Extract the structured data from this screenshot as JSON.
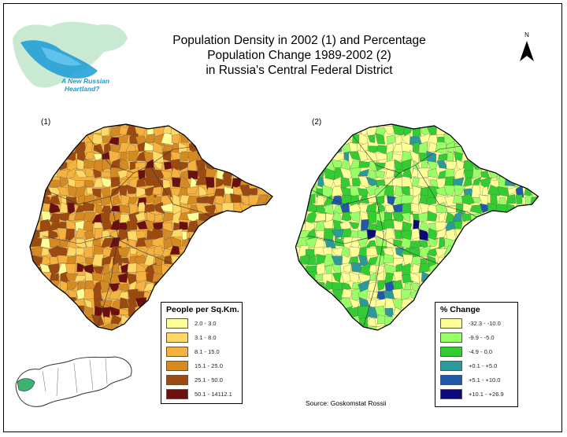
{
  "title": {
    "line1": "Population Density in 2002 (1) and Percentage",
    "line2": "Population Change 1989-2002 (2)",
    "line3": "in Russia's Central Federal District"
  },
  "logo": {
    "line1": "A New Russian",
    "line2": "Heartland?",
    "accent_color": "#1a9bd7"
  },
  "north_arrow": {
    "label": "N"
  },
  "map1": {
    "label": "(1)",
    "legend_title": "People per Sq.Km.",
    "classes": [
      {
        "label": "2.0 - 3.0",
        "color": "#ffff99"
      },
      {
        "label": "3.1 - 8.0",
        "color": "#ffd966"
      },
      {
        "label": "8.1 - 15.0",
        "color": "#f5b23f"
      },
      {
        "label": "15.1 - 25.0",
        "color": "#d68a22"
      },
      {
        "label": "25.1 - 50.0",
        "color": "#9c4a0f"
      },
      {
        "label": "50.1 - 14112.1",
        "color": "#6b0f0f"
      }
    ]
  },
  "map2": {
    "label": "(2)",
    "legend_title": "% Change",
    "classes": [
      {
        "label": "-32.3 - -10.0",
        "color": "#ffff99"
      },
      {
        "label": "-9.9 - -5.0",
        "color": "#99ff66"
      },
      {
        "label": "-4.9 - 0.0",
        "color": "#33cc33"
      },
      {
        "label": "+0.1 - +5.0",
        "color": "#2b9a99"
      },
      {
        "label": "+5.1 - +10.0",
        "color": "#1e5aa8"
      },
      {
        "label": "+10.1 - +26.9",
        "color": "#0a0a7a"
      }
    ]
  },
  "source": "Source: Goskomstat Rossii",
  "inset": {
    "highlight_color": "#3cb371"
  }
}
